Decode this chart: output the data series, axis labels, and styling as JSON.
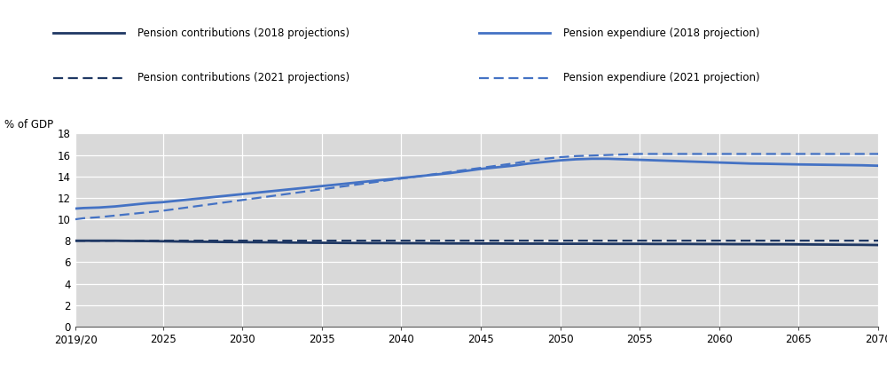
{
  "years": [
    2019.5,
    2020,
    2021,
    2022,
    2023,
    2024,
    2025,
    2026,
    2027,
    2028,
    2029,
    2030,
    2031,
    2032,
    2033,
    2034,
    2035,
    2036,
    2037,
    2038,
    2039,
    2040,
    2041,
    2042,
    2043,
    2044,
    2045,
    2046,
    2047,
    2048,
    2049,
    2050,
    2051,
    2052,
    2053,
    2054,
    2055,
    2056,
    2057,
    2058,
    2059,
    2060,
    2061,
    2062,
    2063,
    2064,
    2065,
    2066,
    2067,
    2068,
    2069,
    2070
  ],
  "pension_contrib_2018": [
    8.0,
    8.0,
    8.0,
    8.0,
    7.98,
    7.97,
    7.95,
    7.93,
    7.91,
    7.9,
    7.88,
    7.87,
    7.86,
    7.85,
    7.83,
    7.82,
    7.81,
    7.8,
    7.79,
    7.78,
    7.78,
    7.77,
    7.77,
    7.76,
    7.75,
    7.75,
    7.74,
    7.74,
    7.73,
    7.73,
    7.73,
    7.72,
    7.72,
    7.72,
    7.71,
    7.71,
    7.71,
    7.7,
    7.7,
    7.7,
    7.69,
    7.69,
    7.68,
    7.68,
    7.67,
    7.67,
    7.66,
    7.65,
    7.64,
    7.63,
    7.62,
    7.6
  ],
  "pension_contrib_2021": [
    8.0,
    8.0,
    8.0,
    8.01,
    8.01,
    8.01,
    8.01,
    8.01,
    8.01,
    8.01,
    8.01,
    8.01,
    8.01,
    8.01,
    8.01,
    8.01,
    8.01,
    8.01,
    8.01,
    8.01,
    8.01,
    8.01,
    8.01,
    8.01,
    8.01,
    8.01,
    8.01,
    8.01,
    8.01,
    8.01,
    8.01,
    8.01,
    8.01,
    8.01,
    8.01,
    8.01,
    8.01,
    8.01,
    8.01,
    8.01,
    8.01,
    8.01,
    8.01,
    8.01,
    8.01,
    8.01,
    8.01,
    8.01,
    8.01,
    8.01,
    8.01,
    8.01
  ],
  "pension_expend_2018": [
    11.0,
    11.05,
    11.1,
    11.2,
    11.35,
    11.5,
    11.6,
    11.75,
    11.9,
    12.05,
    12.2,
    12.35,
    12.5,
    12.65,
    12.8,
    12.95,
    13.1,
    13.25,
    13.4,
    13.55,
    13.7,
    13.85,
    14.0,
    14.15,
    14.3,
    14.5,
    14.7,
    14.85,
    15.0,
    15.2,
    15.35,
    15.5,
    15.6,
    15.65,
    15.65,
    15.6,
    15.55,
    15.5,
    15.45,
    15.4,
    15.35,
    15.3,
    15.25,
    15.2,
    15.18,
    15.15,
    15.12,
    15.1,
    15.08,
    15.06,
    15.04,
    15.0
  ],
  "pension_expend_2021": [
    10.0,
    10.1,
    10.2,
    10.35,
    10.5,
    10.65,
    10.8,
    11.0,
    11.2,
    11.4,
    11.6,
    11.8,
    12.0,
    12.2,
    12.4,
    12.6,
    12.8,
    13.0,
    13.2,
    13.4,
    13.6,
    13.8,
    14.0,
    14.2,
    14.4,
    14.6,
    14.8,
    15.0,
    15.2,
    15.45,
    15.65,
    15.8,
    15.9,
    15.95,
    16.0,
    16.05,
    16.1,
    16.1,
    16.1,
    16.1,
    16.1,
    16.1,
    16.1,
    16.1,
    16.1,
    16.1,
    16.1,
    16.1,
    16.1,
    16.1,
    16.1,
    16.1
  ],
  "color_contrib": "#1f3864",
  "color_expend": "#4472c4",
  "legend_labels": [
    "Pension contributions (2018 projections)",
    "Pension contributions (2021 projections)",
    "Pension expendiure (2018 projection)",
    "Pension expendiure (2021 projection)"
  ],
  "ylabel": "% of GDP",
  "ylim": [
    0,
    18
  ],
  "yticks": [
    0,
    2,
    4,
    6,
    8,
    10,
    12,
    14,
    16,
    18
  ],
  "xticks": [
    2019.5,
    2025,
    2030,
    2035,
    2040,
    2045,
    2050,
    2055,
    2060,
    2065,
    2070
  ],
  "xticklabels": [
    "2019/20",
    "2025",
    "2030",
    "2035",
    "2040",
    "2045",
    "2050",
    "2055",
    "2060",
    "2065",
    "2070"
  ],
  "background_color": "#d9d9d9",
  "fig_bg": "#ffffff",
  "legend_bg": "#d9d9d9"
}
